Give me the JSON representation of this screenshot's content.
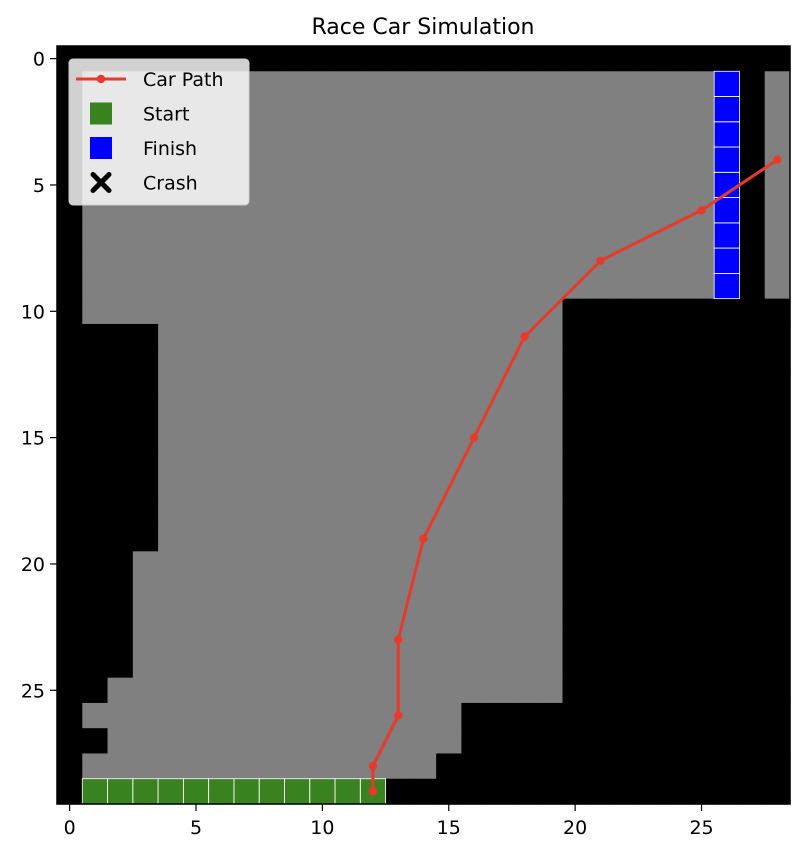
{
  "chart_data": {
    "type": "heatmap",
    "title": "Race Car Simulation",
    "xlabel": "",
    "ylabel": "",
    "xlim": [
      -0.5,
      28.5
    ],
    "ylim": [
      29.5,
      -0.5
    ],
    "xticks": [
      0,
      5,
      10,
      15,
      20,
      25
    ],
    "yticks": [
      0,
      5,
      10,
      15,
      20,
      25
    ],
    "grid": false,
    "legend_position": "upper-left",
    "colors": {
      "wall": "#000000",
      "track": "#808080",
      "start": "#38821f",
      "finish": "#0000ff",
      "path": "#e8392a",
      "crash": "#000000",
      "cell_border": "#ffffff"
    },
    "grid_rows": [
      "00000000000000000000000000000",
      "01111111111111111111111111301",
      "01111111111111111111111111301",
      "01111111111111111111111111301",
      "01111111111111111111111111301",
      "01111111111111111111111111301",
      "01111111111111111111111111301",
      "01111111111111111111111111301",
      "01111111111111111111111111301",
      "01111111111111111111111111301",
      "01111111111111111111000000000",
      "00001111111111111111000000000",
      "00001111111111111111000000000",
      "00001111111111111111000000000",
      "00001111111111111111000000000",
      "00001111111111111111000000000",
      "00001111111111111111000000000",
      "00001111111111111111000000000",
      "00001111111111111111000000000",
      "00001111111111111111000000000",
      "00011111111111111111000000000",
      "00011111111111111111000000000",
      "00011111111111111111000000000",
      "00011111111111111111000000000",
      "00011111111111111111000000000",
      "00111111111111111111000000000",
      "01111111111111110000000000000",
      "00111111111111110000000000000",
      "01111111111111100000000000000",
      "02222222222220000000000000000"
    ],
    "series": [
      {
        "name": "Car Path",
        "points": [
          [
            12,
            29
          ],
          [
            12,
            28
          ],
          [
            13,
            26
          ],
          [
            13,
            23
          ],
          [
            14,
            19
          ],
          [
            16,
            15
          ],
          [
            18,
            11
          ],
          [
            21,
            8
          ],
          [
            25,
            6
          ],
          [
            28,
            4
          ]
        ]
      }
    ],
    "legend": [
      {
        "label": "Car Path",
        "marker": "line-dot",
        "color": "#e8392a"
      },
      {
        "label": "Start",
        "marker": "square",
        "color": "#38821f"
      },
      {
        "label": "Finish",
        "marker": "square",
        "color": "#0000ff"
      },
      {
        "label": "Crash",
        "marker": "x",
        "color": "#000000"
      }
    ]
  }
}
